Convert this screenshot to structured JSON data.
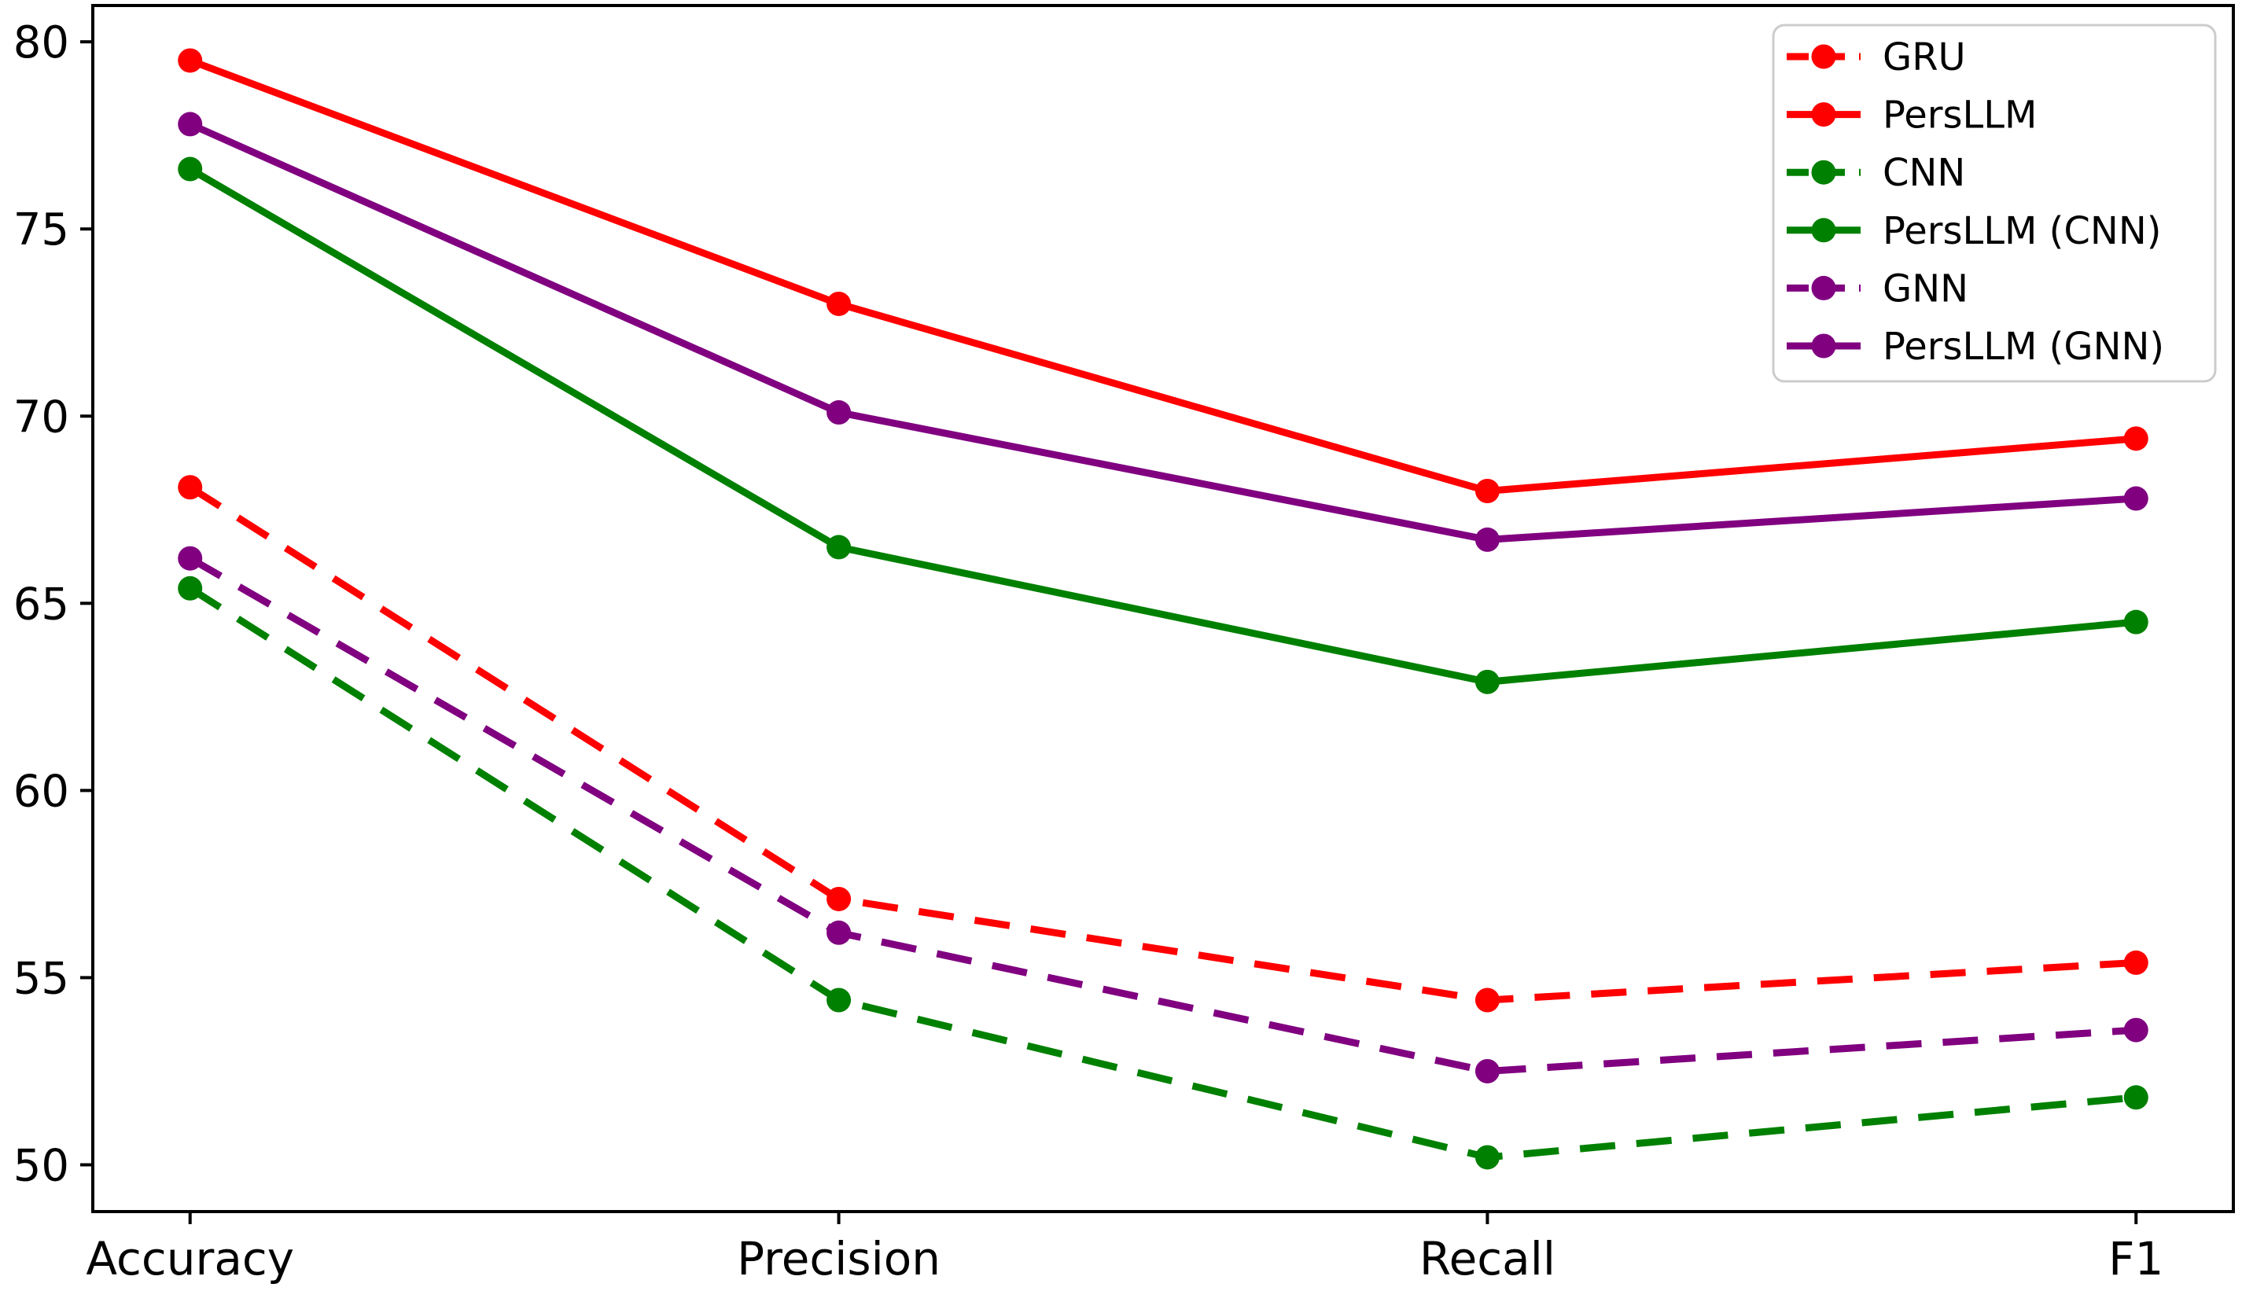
{
  "figure": {
    "background": "#ffffff"
  },
  "chart_data": {
    "type": "line",
    "title": "",
    "xlabel": "",
    "ylabel": "",
    "categories": [
      "Accuracy",
      "Precision",
      "Recall",
      "F1"
    ],
    "y_ticks": [
      "80",
      "75",
      "70",
      "65",
      "60",
      "55",
      "50"
    ],
    "y_tick_values": [
      80,
      75,
      70,
      65,
      60,
      55,
      50
    ],
    "ylim": [
      48.75,
      80.97
    ],
    "xlim": [
      -0.15,
      3.15
    ],
    "grid": false,
    "legend_position": "upper right",
    "series": [
      {
        "name": "GRU",
        "color": "#ff0000",
        "style": "dashed",
        "marker": "circle",
        "values": [
          68.1,
          57.1,
          54.4,
          55.4
        ]
      },
      {
        "name": "PersLLM",
        "color": "#ff0000",
        "style": "solid",
        "marker": "circle",
        "values": [
          79.5,
          73.0,
          68.0,
          69.4
        ]
      },
      {
        "name": "CNN",
        "color": "#008000",
        "style": "dashed",
        "marker": "circle",
        "values": [
          65.4,
          54.4,
          50.2,
          51.8
        ]
      },
      {
        "name": "PersLLM (CNN)",
        "color": "#008000",
        "style": "solid",
        "marker": "circle",
        "values": [
          76.6,
          66.5,
          62.9,
          64.5
        ]
      },
      {
        "name": "GNN",
        "color": "#800080",
        "style": "dashed",
        "marker": "circle",
        "values": [
          66.2,
          56.2,
          52.5,
          53.6
        ]
      },
      {
        "name": "PersLLM (GNN)",
        "color": "#800080",
        "style": "solid",
        "marker": "circle",
        "values": [
          77.8,
          70.1,
          66.7,
          67.8
        ]
      }
    ],
    "axis_color": "#000000",
    "legend_border_color": "#cccccc",
    "legend_background": "#ffffff"
  }
}
